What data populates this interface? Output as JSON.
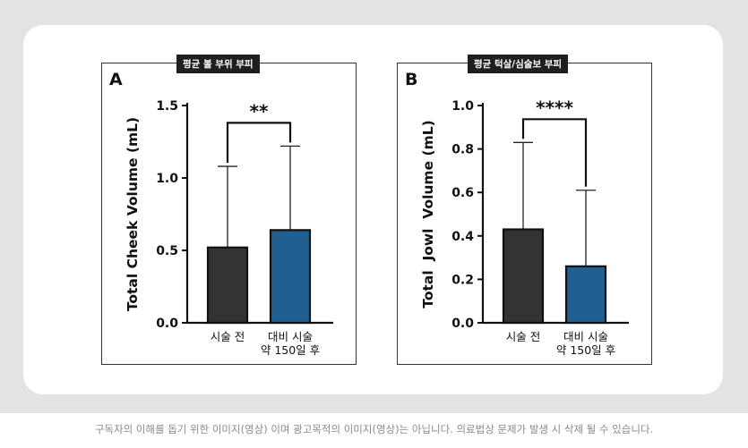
{
  "disclaimer": "구독자의 이해를 돕기 위한 이미지(영상) 이며 광고목적의 이미지(영상)는 아닙니다. 의료법상 문제가 발생 시 삭제 될 수 있습니다.",
  "colors": {
    "before": "#333333",
    "after": "#1f5f91",
    "axis": "#111111",
    "error": "#222222"
  },
  "chart_data": [
    {
      "type": "bar",
      "panel_letter": "A",
      "title": "평균 볼 부위 부피",
      "ylabel": "Total Cheek Volume (mL)",
      "ylim": [
        0,
        1.5
      ],
      "yticks": [
        "0.0",
        "0.5",
        "1.0",
        "1.5"
      ],
      "ytick_values": [
        0,
        0.5,
        1.0,
        1.5
      ],
      "categories": [
        [
          "시술 전"
        ],
        [
          "대비 시술",
          "약 150일 후"
        ]
      ],
      "values": [
        0.52,
        0.64
      ],
      "error_upper": [
        1.08,
        1.22
      ],
      "significance": "**"
    },
    {
      "type": "bar",
      "panel_letter": "B",
      "title": "평균 턱살/심술보 부피",
      "ylabel": "Total  Jowl  Volume (mL)",
      "ylim": [
        0,
        1.0
      ],
      "yticks": [
        "0.0",
        "0.2",
        "0.4",
        "0.6",
        "0.8",
        "1.0"
      ],
      "ytick_values": [
        0,
        0.2,
        0.4,
        0.6,
        0.8,
        1.0
      ],
      "categories": [
        [
          "시술 전"
        ],
        [
          "대비 시술",
          "약 150일 후"
        ]
      ],
      "values": [
        0.43,
        0.26
      ],
      "error_upper": [
        0.83,
        0.61
      ],
      "significance": "****"
    }
  ]
}
